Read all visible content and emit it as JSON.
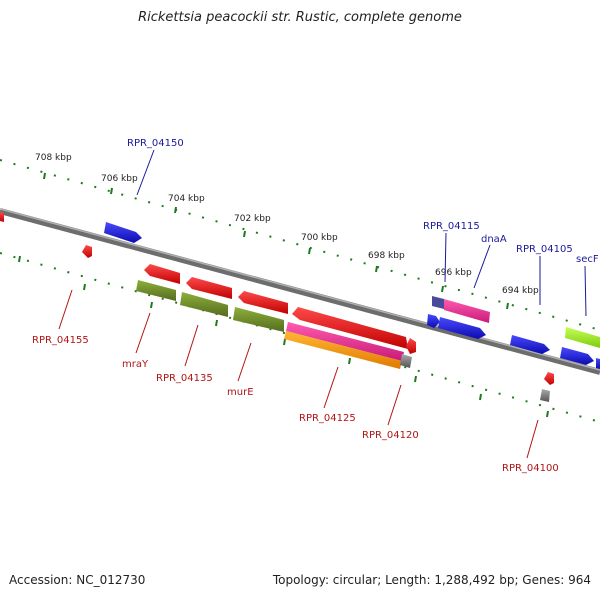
{
  "title": "Rickettsia peacockii str. Rustic, complete genome",
  "footer": {
    "accession": "Accession: NC_012730",
    "summary": "Topology: circular; Length: 1,288,492 bp; Genes: 964"
  },
  "scale_labels": [
    "708 kbp",
    "706 kbp",
    "704 kbp",
    "702 kbp",
    "700 kbp",
    "698 kbp",
    "696 kbp",
    "694 kbp"
  ],
  "top_gene_labels": [
    "RPR_04150",
    "RPR_04115",
    "dnaA",
    "RPR_04105",
    "secF"
  ],
  "bottom_gene_labels": [
    "RPR_04155",
    "mraY",
    "RPR_04135",
    "murE",
    "RPR_04125",
    "RPR_04120",
    "RPR_04100"
  ],
  "colors": {
    "backbone": "#808080",
    "forward_gene": "#1414e6",
    "reverse_gene": "#ee1111",
    "olive": "#6b8e23",
    "magenta": "#ee2a96",
    "orange": "#ff9900",
    "lime": "#99ee22",
    "label_blue": "#1a1a9a",
    "label_red": "#b01515",
    "tick_green": "#1f7a1f"
  }
}
